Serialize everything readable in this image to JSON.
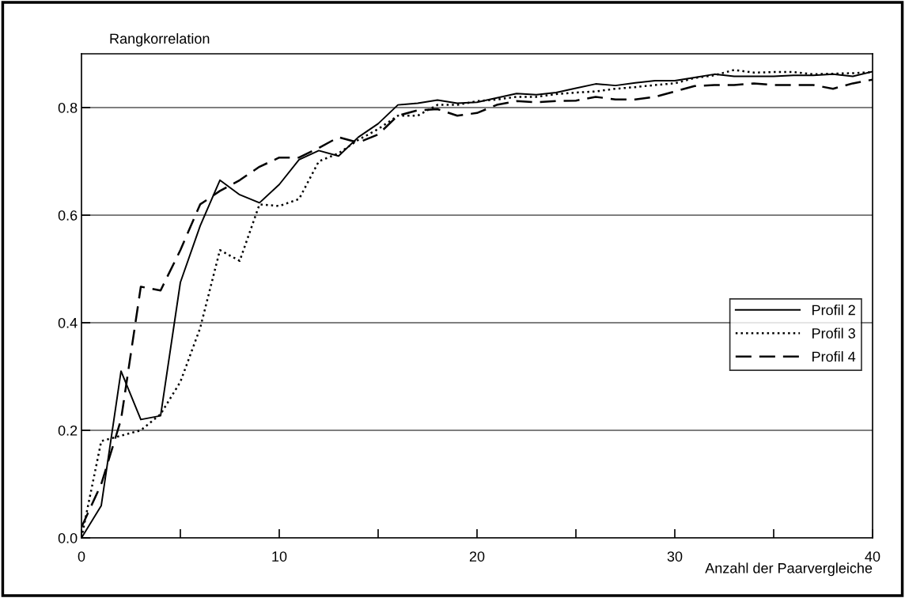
{
  "chart_data": {
    "type": "line",
    "ylabel": "Rangkorrelation",
    "xlabel": "Anzahl der Paarvergleiche",
    "x": [
      0,
      1,
      2,
      3,
      4,
      5,
      6,
      7,
      8,
      9,
      10,
      11,
      12,
      13,
      14,
      15,
      16,
      17,
      18,
      19,
      20,
      21,
      22,
      23,
      24,
      25,
      26,
      27,
      28,
      29,
      30,
      31,
      32,
      33,
      34,
      35,
      36,
      37,
      38,
      39,
      40
    ],
    "series": [
      {
        "name": "Profil 2",
        "color": "#000000",
        "line_style": "solid",
        "values": [
          0,
          0.06,
          0.31,
          0.22,
          0.227,
          0.475,
          0.58,
          0.665,
          0.638,
          0.623,
          0.657,
          0.703,
          0.72,
          0.71,
          0.745,
          0.77,
          0.805,
          0.808,
          0.814,
          0.808,
          0.81,
          0.818,
          0.826,
          0.824,
          0.828,
          0.836,
          0.844,
          0.841,
          0.846,
          0.85,
          0.85,
          0.856,
          0.862,
          0.858,
          0.858,
          0.858,
          0.86,
          0.86,
          0.862,
          0.858,
          0.867
        ]
      },
      {
        "name": "Profil 3",
        "color": "#000000",
        "line_style": "dotted",
        "values": [
          0,
          0.18,
          0.19,
          0.2,
          0.23,
          0.29,
          0.39,
          0.535,
          0.515,
          0.62,
          0.617,
          0.63,
          0.7,
          0.715,
          0.74,
          0.76,
          0.785,
          0.785,
          0.805,
          0.805,
          0.812,
          0.815,
          0.82,
          0.82,
          0.825,
          0.828,
          0.83,
          0.835,
          0.838,
          0.842,
          0.845,
          0.855,
          0.86,
          0.87,
          0.865,
          0.866,
          0.866,
          0.862,
          0.863,
          0.864,
          0.866
        ]
      },
      {
        "name": "Profil 4",
        "color": "#000000",
        "line_style": "dashed",
        "values": [
          0.02,
          0.1,
          0.22,
          0.467,
          0.46,
          0.535,
          0.62,
          0.645,
          0.665,
          0.69,
          0.707,
          0.707,
          0.725,
          0.745,
          0.735,
          0.75,
          0.785,
          0.795,
          0.797,
          0.785,
          0.79,
          0.805,
          0.812,
          0.81,
          0.812,
          0.813,
          0.82,
          0.815,
          0.815,
          0.82,
          0.83,
          0.84,
          0.842,
          0.842,
          0.845,
          0.842,
          0.842,
          0.842,
          0.835,
          0.845,
          0.852
        ]
      }
    ],
    "xlim": [
      0,
      40
    ],
    "xticks": [
      0,
      {
        "value": 5,
        "label": null
      },
      10,
      {
        "value": 15,
        "label": null
      },
      20,
      {
        "value": 25,
        "label": null
      },
      30,
      {
        "value": 35,
        "label": null
      },
      40
    ],
    "ylim": [
      0,
      0.9
    ],
    "yticks": [
      {
        "value": 0,
        "label": "0.0"
      },
      {
        "value": 0.2,
        "label": "0.2"
      },
      {
        "value": 0.4,
        "label": "0.4"
      },
      {
        "value": 0.6,
        "label": "0.6"
      },
      {
        "value": 0.8,
        "label": "0.8"
      }
    ],
    "grid": "y",
    "legend": "right",
    "marker": "none"
  }
}
